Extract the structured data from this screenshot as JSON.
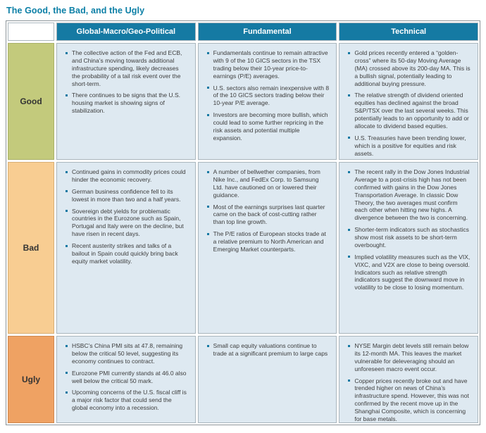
{
  "title": "The Good, the Bad, and the Ugly",
  "columns": [
    "Global-Macro/Geo-Political",
    "Fundamental",
    "Technical"
  ],
  "rows": [
    {
      "label": "Good",
      "cells": [
        [
          "The collective action of the Fed and ECB, and China’s moving towards additional infrastructure spending, likely decreases the probability of a tail risk event over the short-term.",
          "There continues to be signs that the U.S. housing market is showing signs of stabilization."
        ],
        [
          "Fundamentals continue to remain attractive with 9 of the 10 GICS sectors in the TSX trading below their 10-year price-to-earnings (P/E) averages.",
          "U.S. sectors also remain inexpensive with 8 of the 10 GICS sectors trading below their 10-year P/E average.",
          "Investors are becoming more bullish, which could lead to some further repricing in the risk assets and potential multiple expansion."
        ],
        [
          "Gold prices recently entered a “golden-cross” where its 50-day Moving Average (MA) crossed above its 200-day MA. This is a bullish signal, potentially leading to additional buying pressure.",
          "The relative strength of dividend oriented equities has declined against the broad S&P/TSX over the last several weeks. This potentially leads to an opportunity to add or allocate to dividend based equities.",
          "U.S. Treasuries have been trending lower, which is a positive for equities and risk assets."
        ]
      ]
    },
    {
      "label": "Bad",
      "cells": [
        [
          "Continued gains in commodity prices could hinder the economic recovery.",
          "German business confidence fell to its lowest in more than two and a half years.",
          "Sovereign debt yields for problematic countries in the Eurozone such as Spain, Portugal and Italy were on the decline, but have risen in recent days.",
          "Recent austerity strikes and talks of a bailout in Spain could quickly bring back equity market volatility."
        ],
        [
          "A number of bellwether companies, from Nike Inc., and FedEx Corp. to Samsung Ltd. have cautioned on or lowered their guidance.",
          "Most of the earnings surprises last quarter came on the back of cost-cutting rather than top line growth.",
          "The P/E ratios of European stocks trade at a relative premium to North American and Emerging Market counterparts."
        ],
        [
          "The recent rally in the Dow Jones Industrial Average to a post-crisis high has not been confirmed with gains in the Dow Jones Transportation Average. In classic Dow Theory, the two averages must confirm each other when hitting new highs. A divergence between the two is concerning.",
          "Shorter-term indicators such as stochastics show most risk assets to be short-term overbought.",
          "Implied volatility measures such as the VIX, VIXC, and V2X are close to being oversold. Indicators such as relative strength indicators suggest the downward move in volatility to be close to losing momentum."
        ]
      ]
    },
    {
      "label": "Ugly",
      "cells": [
        [
          "HSBC’s China PMI sits at 47.8, remaining below the critical 50 level, suggesting its economy continues to contract.",
          "Eurozone PMI currently stands at 46.0 also well below the critical 50 mark.",
          "Upcoming concerns of the U.S. fiscal cliff is a major risk factor that could send the global economy into a recession."
        ],
        [
          "Small cap equity valuations continue to trade at a significant premium to large caps"
        ],
        [
          "NYSE Margin debt levels still remain below its 12-month MA. This leaves the market vulnerable for deleveraging should an unforeseen macro event occur.",
          "Copper prices recently broke out and have trended higher on news of China’s infrastructure spend. However, this was not confirmed by the recent move up in the Shanghai Composite, which is concerning for base metals."
        ]
      ]
    }
  ],
  "colors": {
    "accent_teal": "#157AA3",
    "title_teal": "#0B7FA6",
    "good_bg": "#C3CA7C",
    "bad_bg": "#F8CD92",
    "ugly_bg": "#EFA263",
    "cell_bg": "#DEE9F1",
    "bullet": "#1579A3",
    "body_text": "#3D3D3D"
  }
}
